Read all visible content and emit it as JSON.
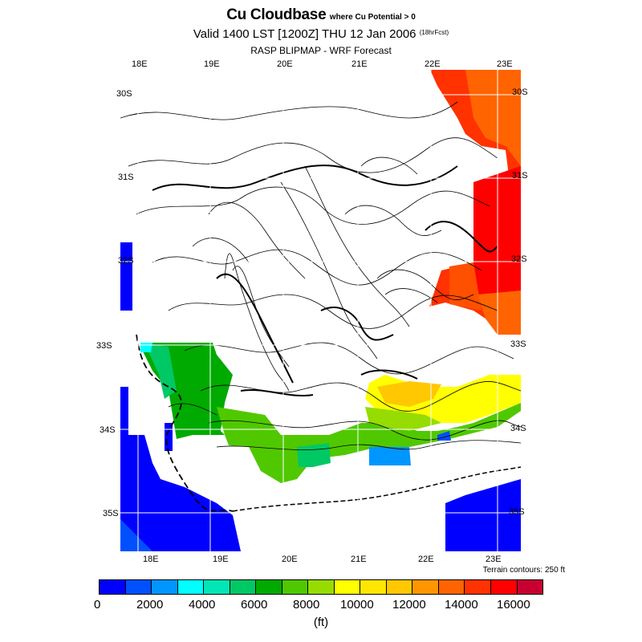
{
  "header": {
    "title": "Cu Cloudbase",
    "title_suffix": "where Cu Potential > 0",
    "valid_line": "Valid 1400 LST [1200Z] THU 12 Jan 2006",
    "fcst_tag": "(18hrFcst)",
    "subtitle": "RASP BLIPMAP - WRF Forecast"
  },
  "map": {
    "top_lon_labels": [
      "18E",
      "19E",
      "20E",
      "21E",
      "22E",
      "23E"
    ],
    "bottom_lon_labels": [
      "18E",
      "19E",
      "20E",
      "21E",
      "22E",
      "23E"
    ],
    "left_lat_labels": [
      "30S",
      "31S",
      "32S",
      "33S",
      "34S",
      "35S"
    ],
    "right_lat_labels": [
      "30S",
      "31S",
      "32S",
      "33S",
      "34S",
      "35S"
    ],
    "terrain_note": "Terrain contours: 250 ft"
  },
  "colorbar": {
    "colors": [
      "#0000ff",
      "#0050ff",
      "#0096ff",
      "#00ffff",
      "#00e6b4",
      "#00c864",
      "#00aa00",
      "#50c800",
      "#96dc00",
      "#ffff00",
      "#ffe600",
      "#ffc800",
      "#ff9600",
      "#ff6400",
      "#ff3200",
      "#ff0000",
      "#c80032"
    ],
    "tick_labels": [
      "0",
      "2000",
      "4000",
      "6000",
      "8000",
      "10000",
      "12000",
      "14000",
      "16000"
    ],
    "units": "(ft)"
  }
}
